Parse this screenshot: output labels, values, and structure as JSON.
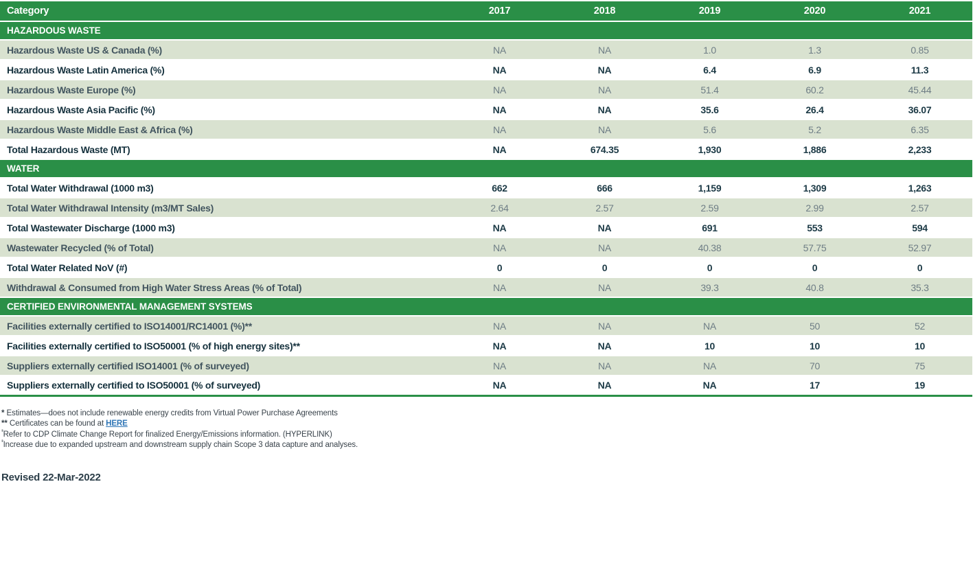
{
  "table": {
    "header": {
      "category_label": "Category",
      "years": [
        "2017",
        "2018",
        "2019",
        "2020",
        "2021"
      ]
    },
    "sections": [
      {
        "title": "HAZARDOUS WASTE",
        "rows": [
          {
            "label": "Hazardous Waste US & Canada (%)",
            "values": [
              "NA",
              "NA",
              "1.0",
              "1.3",
              "0.85"
            ],
            "shaded": true
          },
          {
            "label": "Hazardous Waste Latin America (%)",
            "values": [
              "NA",
              "NA",
              "6.4",
              "6.9",
              "11.3"
            ],
            "shaded": false
          },
          {
            "label": "Hazardous Waste Europe (%)",
            "values": [
              "NA",
              "NA",
              "51.4",
              "60.2",
              "45.44"
            ],
            "shaded": true
          },
          {
            "label": "Hazardous Waste Asia Pacific (%)",
            "values": [
              "NA",
              "NA",
              "35.6",
              "26.4",
              "36.07"
            ],
            "shaded": false
          },
          {
            "label": "Hazardous Waste Middle East & Africa (%)",
            "values": [
              "NA",
              "NA",
              "5.6",
              "5.2",
              "6.35"
            ],
            "shaded": true
          },
          {
            "label": "Total Hazardous Waste (MT)",
            "values": [
              "NA",
              "674.35",
              "1,930",
              "1,886",
              "2,233"
            ],
            "shaded": false
          }
        ]
      },
      {
        "title": "WATER",
        "rows": [
          {
            "label": "Total Water Withdrawal (1000 m3)",
            "values": [
              "662",
              "666",
              "1,159",
              "1,309",
              "1,263"
            ],
            "shaded": false
          },
          {
            "label": "Total Water Withdrawal Intensity (m3/MT Sales)",
            "values": [
              "2.64",
              "2.57",
              "2.59",
              "2.99",
              "2.57"
            ],
            "shaded": true
          },
          {
            "label": "Total Wastewater Discharge (1000 m3)",
            "values": [
              "NA",
              "NA",
              "691",
              "553",
              "594"
            ],
            "shaded": false
          },
          {
            "label": "Wastewater Recycled (% of Total)",
            "values": [
              "NA",
              "NA",
              "40.38",
              "57.75",
              "52.97"
            ],
            "shaded": true
          },
          {
            "label": "Total Water Related NoV (#)",
            "values": [
              "0",
              "0",
              "0",
              "0",
              "0"
            ],
            "shaded": false
          },
          {
            "label": "Withdrawal & Consumed from High Water Stress Areas (% of Total)",
            "values": [
              "NA",
              "NA",
              "39.3",
              "40.8",
              "35.3"
            ],
            "shaded": true
          }
        ]
      },
      {
        "title": "CERTIFIED ENVIRONMENTAL MANAGEMENT SYSTEMS",
        "rows": [
          {
            "label": "Facilities externally certified to ISO14001/RC14001 (%)**",
            "values": [
              "NA",
              "NA",
              "NA",
              "50",
              "52"
            ],
            "shaded": true
          },
          {
            "label": "Facilities externally certified to ISO50001 (% of high energy sites)**",
            "values": [
              "NA",
              "NA",
              "10",
              "10",
              "10"
            ],
            "shaded": false
          },
          {
            "label": "Suppliers externally certified ISO14001 (% of surveyed)",
            "values": [
              "NA",
              "NA",
              "NA",
              "70",
              "75"
            ],
            "shaded": true
          },
          {
            "label": "Suppliers externally certified to ISO50001 (% of surveyed)",
            "values": [
              "NA",
              "NA",
              "NA",
              "17",
              "19"
            ],
            "shaded": false
          }
        ]
      }
    ]
  },
  "footnotes": [
    {
      "marker": "*",
      "sup": false,
      "text": "Estimates—does not include renewable energy credits from Virtual Power Purchase Agreements"
    },
    {
      "marker": "**",
      "sup": false,
      "text": "Certificates can be found at ",
      "link_text": "HERE"
    },
    {
      "marker": "³",
      "sup": true,
      "text": "Refer to CDP Climate Change Report for finalized Energy/Emissions information. (HYPERLINK)"
    },
    {
      "marker": "³",
      "sup": true,
      "text": "Increase due to expanded upstream and downstream supply chain Scope 3 data capture and analyses."
    }
  ],
  "revised_label": "Revised 22-Mar-2022",
  "colors": {
    "header_green": "#2A8F47",
    "row_shade_green": "#D9E2D0",
    "dark_text": "#1B3945",
    "muted_text": "#6E7D85",
    "link_blue": "#2E75B6"
  }
}
